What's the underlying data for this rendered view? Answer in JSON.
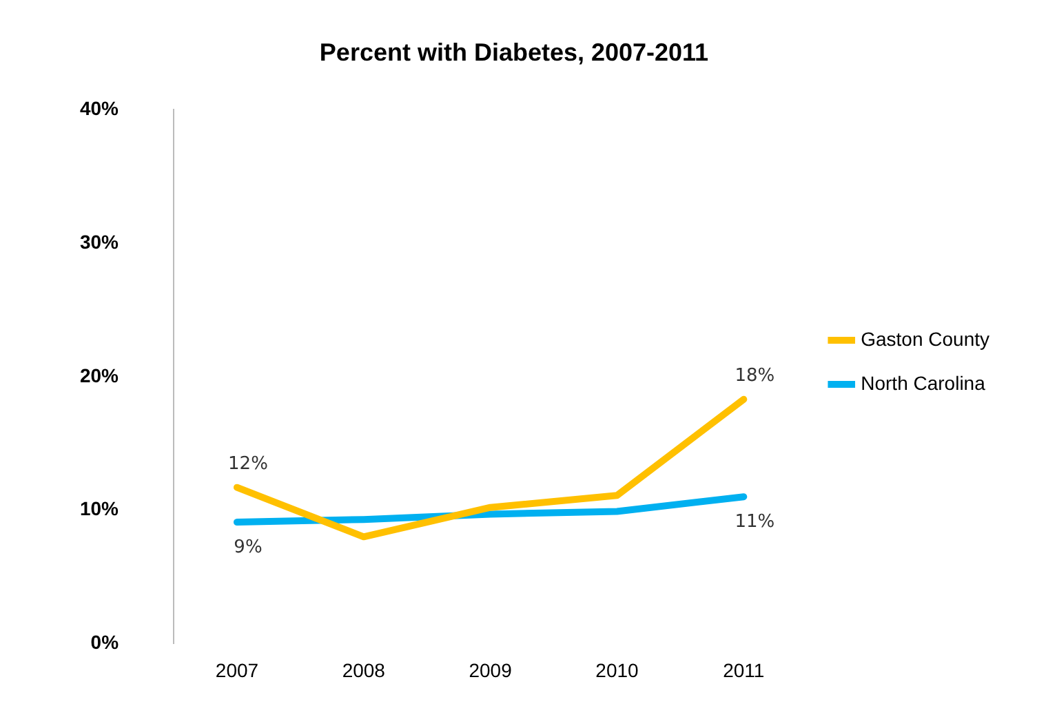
{
  "chart_data": {
    "type": "line",
    "title": "Percent with Diabetes, 2007-2011",
    "categories": [
      "2007",
      "2008",
      "2009",
      "2010",
      "2011"
    ],
    "series": [
      {
        "name": "Gaston County",
        "color": "#ffc000",
        "values": [
          11.7,
          8.0,
          10.2,
          11.1,
          18.3
        ],
        "value_labels": [
          "12%",
          null,
          null,
          null,
          "18%"
        ]
      },
      {
        "name": "North Carolina",
        "color": "#00b0f0",
        "values": [
          9.1,
          9.3,
          9.7,
          9.9,
          11.0
        ],
        "value_labels": [
          "9%",
          null,
          null,
          null,
          "11%"
        ]
      }
    ],
    "ylim": [
      0,
      40
    ],
    "yticks": [
      {
        "value": 0,
        "label": "0%"
      },
      {
        "value": 10,
        "label": "10%"
      },
      {
        "value": 20,
        "label": "20%"
      },
      {
        "value": 30,
        "label": "30%"
      },
      {
        "value": 40,
        "label": "40%"
      }
    ],
    "grid": false,
    "legend": "right",
    "marker": "none",
    "line_style": "solid"
  }
}
